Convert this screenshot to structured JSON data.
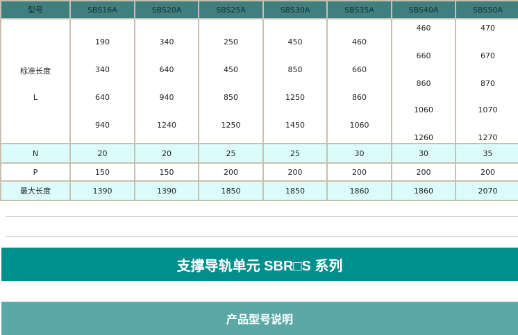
{
  "table": {
    "header": [
      "型号",
      "SBS16A",
      "SBS20A",
      "SBS25A",
      "SBS30A",
      "SBS35A",
      "SBS40A",
      "SBS50A"
    ],
    "length_label": "标准长度",
    "length_sub": "L",
    "lengths": [
      [
        "190",
        "340",
        "640",
        "940"
      ],
      [
        "340",
        "640",
        "940",
        "1240"
      ],
      [
        "250",
        "450",
        "850",
        "1250"
      ],
      [
        "450",
        "850",
        "1250",
        "1450"
      ],
      [
        "460",
        "660",
        "860",
        "1060"
      ],
      [
        "460",
        "660",
        "860",
        "1060",
        "1260"
      ],
      [
        "470",
        "670",
        "870",
        "1070",
        "1270"
      ]
    ],
    "rows": [
      {
        "label": "N",
        "values": [
          "20",
          "20",
          "25",
          "25",
          "30",
          "30",
          "35"
        ]
      },
      {
        "label": "P",
        "values": [
          "150",
          "150",
          "200",
          "200",
          "200",
          "200",
          "200"
        ]
      },
      {
        "label": "最大长度",
        "values": [
          "1390",
          "1390",
          "1850",
          "1850",
          "1860",
          "1860",
          "2070"
        ]
      }
    ]
  },
  "banner_title": "支撑导轨单元 SBR□S 系列",
  "section_title": "产品型号说明"
}
